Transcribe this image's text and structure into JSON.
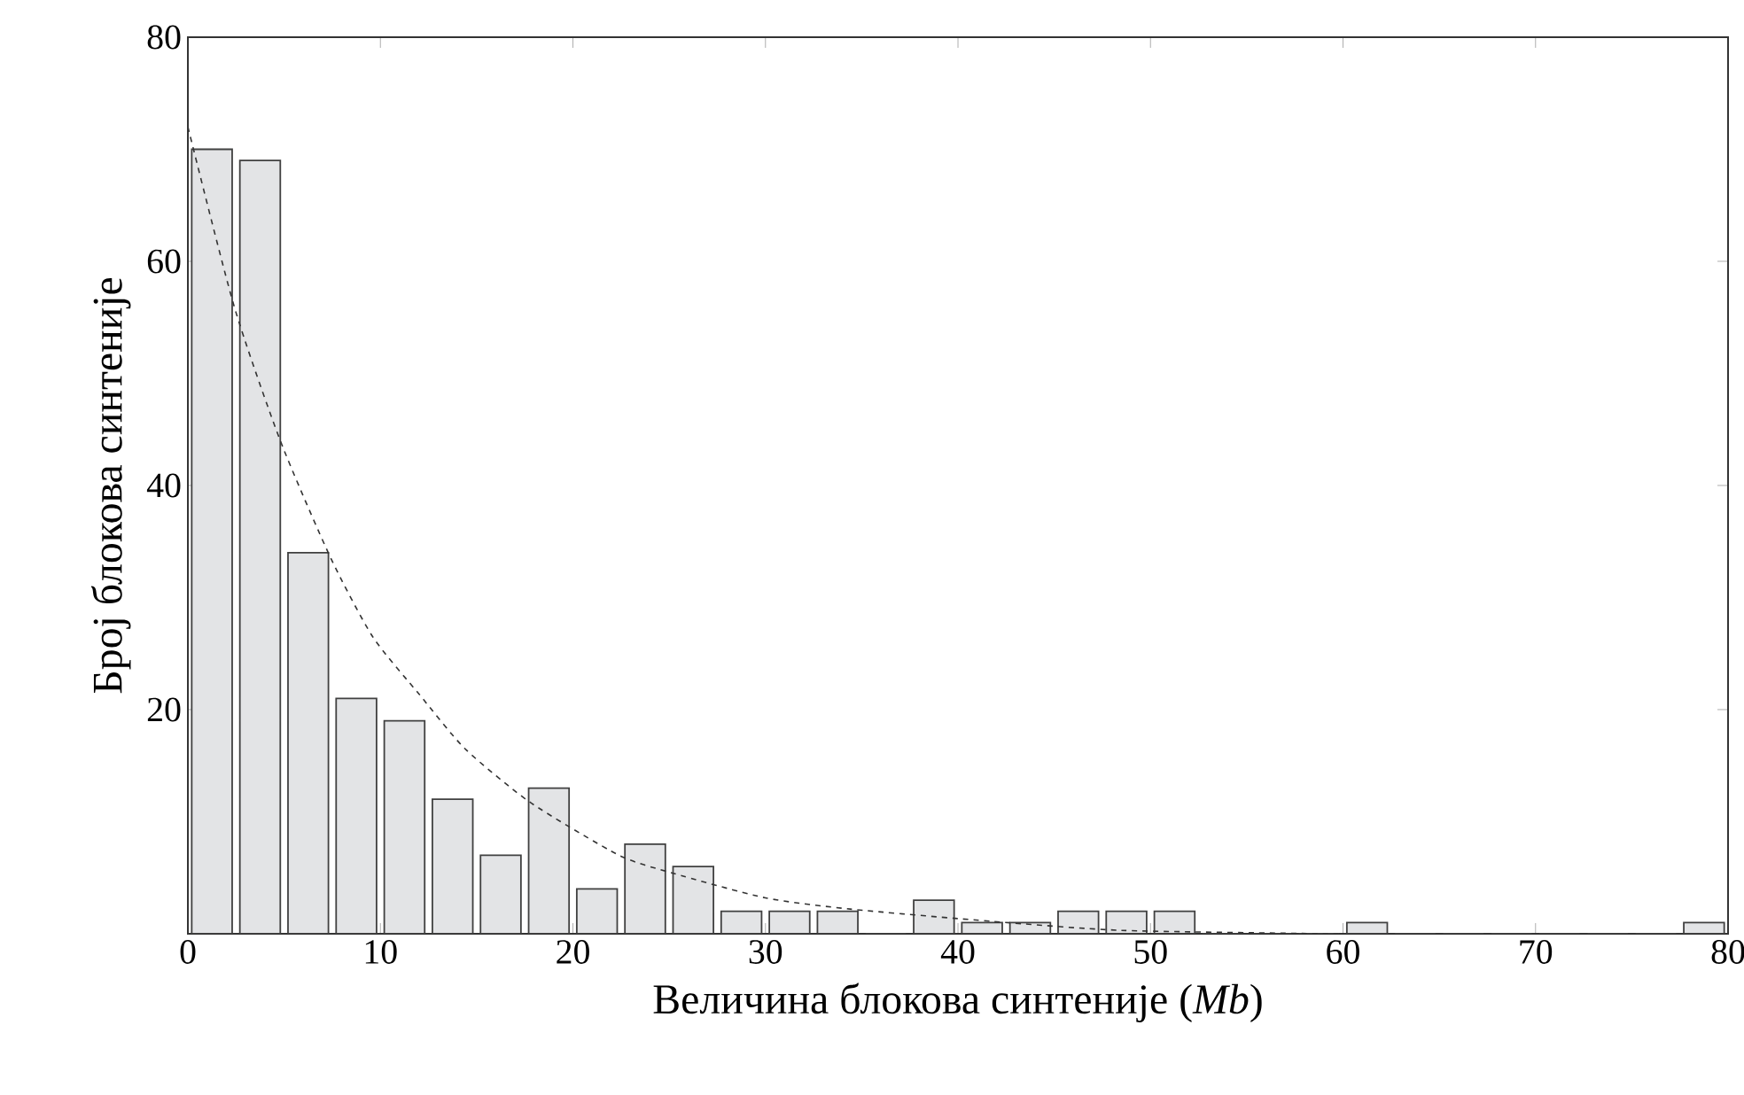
{
  "chart_data": {
    "type": "histogram",
    "xlabel": "Величина блокова синтеније (*Mb*)",
    "ylabel": "Број блокова синтеније",
    "xlim": [
      0,
      80
    ],
    "ylim": [
      0,
      80
    ],
    "xticks": [
      0,
      10,
      20,
      30,
      40,
      50,
      60,
      70,
      80
    ],
    "yticks": [
      {
        "value": 0,
        "label": null
      },
      20,
      40,
      60,
      80
    ],
    "grid": false,
    "series": [
      {
        "color": "#e3e4e6",
        "bins": [
          0,
          2.5,
          5,
          7.5,
          10,
          12.5,
          15,
          17.5,
          20,
          22.5,
          25,
          27.5,
          30,
          32.5,
          35,
          37.5,
          40,
          42.5,
          45,
          47.5,
          50,
          52.5,
          55,
          57.5,
          60,
          62.5,
          65,
          67.5,
          70,
          72.5,
          75,
          77.5,
          80
        ],
        "values": [
          70,
          69,
          34,
          21,
          19,
          12,
          7,
          13,
          4,
          8,
          6,
          2,
          2,
          2,
          0,
          3,
          1,
          1,
          2,
          2,
          2,
          0,
          0,
          0,
          1,
          0,
          0,
          0,
          0,
          0,
          0,
          1
        ]
      },
      {
        "type": "line",
        "color": "#333333",
        "line_style": "dashed",
        "x": [
          0,
          2.4,
          4.8,
          7.4,
          9.6,
          12,
          14.4,
          17.8,
          22.4,
          25.2,
          30,
          34.4,
          41.8,
          48.5,
          59,
          60
        ],
        "values": [
          72,
          56,
          44,
          33.6,
          26.5,
          21.4,
          16.5,
          11.7,
          7,
          5.4,
          3.2,
          2.2,
          1.1,
          0.3,
          0,
          0
        ]
      }
    ]
  }
}
